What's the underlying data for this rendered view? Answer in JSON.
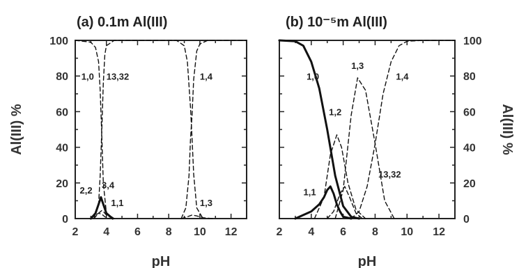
{
  "chart_data": [
    {
      "type": "line",
      "title": "(a)  0.1m Al(III)",
      "xlabel": "pH",
      "ylabel": "Al(III) %",
      "xlim": [
        2,
        13
      ],
      "ylim": [
        0,
        100
      ],
      "xticks": [
        "2",
        "4",
        "6",
        "8",
        "10",
        "12"
      ],
      "yticks": [
        "0",
        "20",
        "40",
        "60",
        "80",
        "100"
      ],
      "ylabel_side": "left",
      "series": [
        {
          "name": "1,0",
          "style": "dashed",
          "x": [
            2,
            3,
            3.3,
            3.5,
            3.6,
            3.7,
            3.8,
            4.0,
            4.5
          ],
          "y": [
            100,
            99,
            96,
            88,
            72,
            48,
            20,
            3,
            0
          ]
        },
        {
          "name": "13,32",
          "style": "dashed",
          "x": [
            3.2,
            3.5,
            3.6,
            3.7,
            3.8,
            3.9,
            4.0,
            4.5,
            8.5,
            9.0,
            9.2,
            9.4,
            9.5,
            9.6,
            9.8,
            10.2
          ],
          "y": [
            0,
            8,
            24,
            48,
            76,
            92,
            97,
            100,
            100,
            97,
            88,
            62,
            45,
            25,
            6,
            0
          ]
        },
        {
          "name": "2,2",
          "style": "dashed",
          "x": [
            3.0,
            3.3,
            3.5,
            3.7,
            3.9,
            4.2
          ],
          "y": [
            0,
            2,
            3,
            2.5,
            1,
            0
          ]
        },
        {
          "name": "3,4",
          "style": "dashed",
          "x": [
            3.2,
            3.5,
            3.7,
            3.8,
            4.0,
            4.4
          ],
          "y": [
            0,
            3,
            4.5,
            4,
            2,
            0
          ]
        },
        {
          "name": "1,1",
          "style": "solid",
          "x": [
            3.0,
            3.3,
            3.5,
            3.65,
            3.8,
            4.0,
            4.4
          ],
          "y": [
            0,
            3,
            8,
            12,
            8,
            3,
            0
          ]
        },
        {
          "name": "1,4",
          "style": "dashed",
          "x": [
            8.8,
            9.1,
            9.3,
            9.4,
            9.5,
            9.6,
            9.8,
            10.0,
            10.5,
            13
          ],
          "y": [
            0,
            6,
            24,
            45,
            58,
            78,
            94,
            98,
            100,
            100
          ]
        },
        {
          "name": "1,3",
          "style": "dashed",
          "x": [
            8.8,
            9.2,
            9.5,
            9.8,
            10.2,
            10.8
          ],
          "y": [
            0,
            1,
            2,
            1.5,
            0.5,
            0
          ]
        }
      ]
    },
    {
      "type": "line",
      "title": "(b)  10⁻⁵m Al(III)",
      "xlabel": "pH",
      "ylabel": "Al(III) %",
      "xlim": [
        2,
        13
      ],
      "ylim": [
        0,
        100
      ],
      "xticks": [
        "2",
        "4",
        "6",
        "8",
        "10",
        "12"
      ],
      "yticks": [
        "0",
        "20",
        "40",
        "60",
        "80",
        "100"
      ],
      "ylabel_side": "right",
      "series": [
        {
          "name": "1,0",
          "style": "solid",
          "x": [
            2,
            3,
            3.5,
            4.0,
            4.5,
            5.0,
            5.5,
            6.0,
            6.5,
            7.0
          ],
          "y": [
            100,
            99.5,
            97,
            88,
            73,
            50,
            24,
            7,
            1,
            0
          ]
        },
        {
          "name": "1,1",
          "style": "solid",
          "x": [
            3.0,
            4.0,
            4.5,
            4.8,
            5.0,
            5.2,
            5.4,
            5.6,
            5.8,
            6.0,
            6.5
          ],
          "y": [
            0,
            4,
            8,
            12,
            16,
            18,
            14,
            8,
            4,
            1,
            0
          ]
        },
        {
          "name": "1,2",
          "style": "dashed",
          "x": [
            4.2,
            4.8,
            5.2,
            5.6,
            5.9,
            6.3,
            6.8,
            7.4
          ],
          "y": [
            0,
            12,
            36,
            47,
            40,
            20,
            5,
            0
          ]
        },
        {
          "name": "13,32",
          "style": "dashed",
          "x": [
            5.0,
            5.4,
            5.8,
            6.1,
            6.4,
            6.8,
            7.2
          ],
          "y": [
            0,
            4,
            14,
            18,
            12,
            3,
            0
          ]
        },
        {
          "name": "1,3",
          "style": "dashed",
          "x": [
            5.5,
            6.0,
            6.5,
            6.9,
            7.4,
            8.0,
            8.6,
            9.2
          ],
          "y": [
            0,
            16,
            58,
            79,
            72,
            42,
            10,
            0
          ]
        },
        {
          "name": "1,4",
          "style": "dashed",
          "x": [
            6.5,
            7.0,
            7.5,
            8.0,
            8.5,
            9.0,
            9.5,
            10.0,
            11,
            13
          ],
          "y": [
            0,
            4,
            18,
            42,
            70,
            88,
            97,
            99.5,
            100,
            100
          ]
        }
      ]
    }
  ]
}
